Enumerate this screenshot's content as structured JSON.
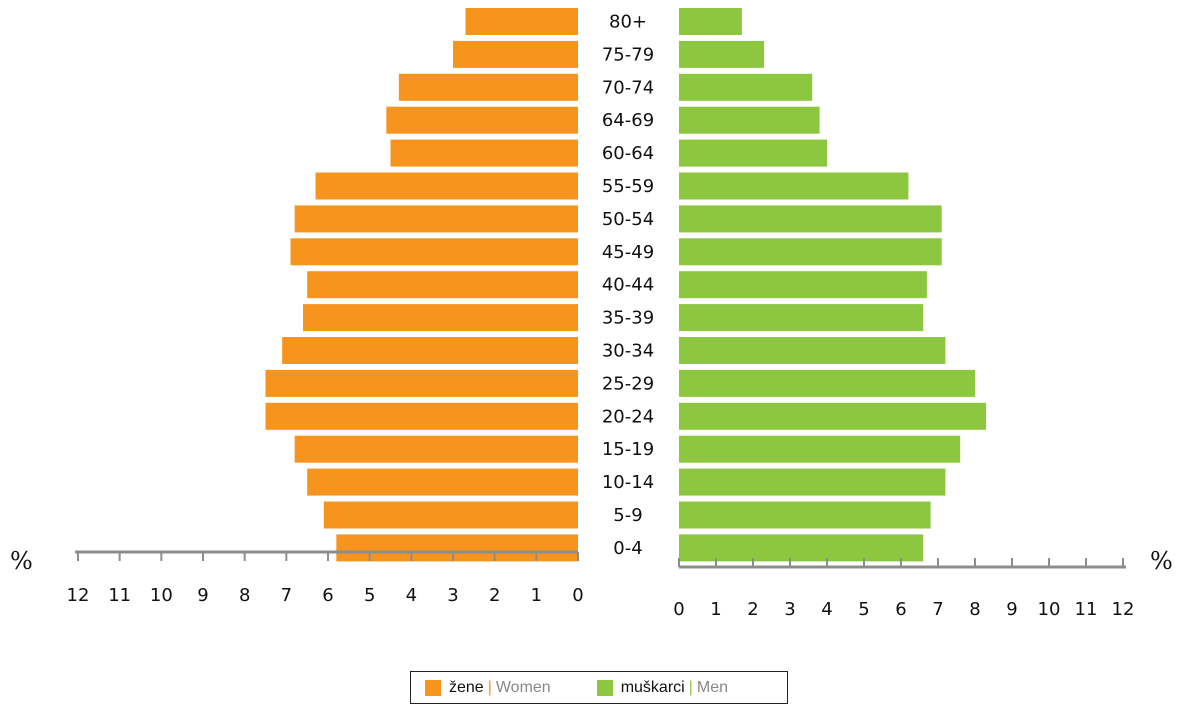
{
  "chart_data": {
    "type": "bar",
    "orientation": "horizontal",
    "categories": [
      "80+",
      "75-79",
      "70-74",
      "64-69",
      "60-64",
      "55-59",
      "50-54",
      "45-49",
      "40-44",
      "35-39",
      "30-34",
      "25-29",
      "20-24",
      "15-19",
      "10-14",
      "5-9",
      "0-4"
    ],
    "series": [
      {
        "name": "žene | Women",
        "name_local": "žene",
        "name_en": "Women",
        "side": "left",
        "color": "#f7941d",
        "values": [
          2.7,
          3.0,
          4.3,
          4.6,
          4.5,
          6.3,
          6.8,
          6.9,
          6.5,
          6.6,
          7.1,
          7.5,
          7.5,
          6.8,
          6.5,
          6.1,
          5.8
        ]
      },
      {
        "name": "muškarci | Men",
        "name_local": "muškarci",
        "name_en": "Men",
        "side": "right",
        "color": "#8dc63f",
        "values": [
          1.7,
          2.3,
          3.6,
          3.8,
          4.0,
          6.2,
          7.1,
          7.1,
          6.7,
          6.6,
          7.2,
          8.0,
          8.3,
          7.6,
          7.2,
          6.8,
          6.6
        ]
      }
    ],
    "left_axis": {
      "ticks": [
        "12",
        "11",
        "10",
        "9",
        "8",
        "7",
        "6",
        "5",
        "4",
        "3",
        "2",
        "1",
        "0"
      ],
      "range": [
        12,
        0
      ],
      "unit": "%"
    },
    "right_axis": {
      "ticks": [
        "0",
        "1",
        "2",
        "3",
        "4",
        "5",
        "6",
        "7",
        "8",
        "9",
        "10",
        "11",
        "12"
      ],
      "range": [
        0,
        12
      ],
      "unit": "%"
    },
    "legend_position": "bottom-center",
    "grid": false
  },
  "legend": {
    "women_local": "žene",
    "women_en": "Women",
    "men_local": "muškarci",
    "men_en": "Men",
    "separator": "|"
  },
  "colors": {
    "women": "#f7941d",
    "men": "#8dc63f",
    "axis": "#8c8c8c"
  }
}
